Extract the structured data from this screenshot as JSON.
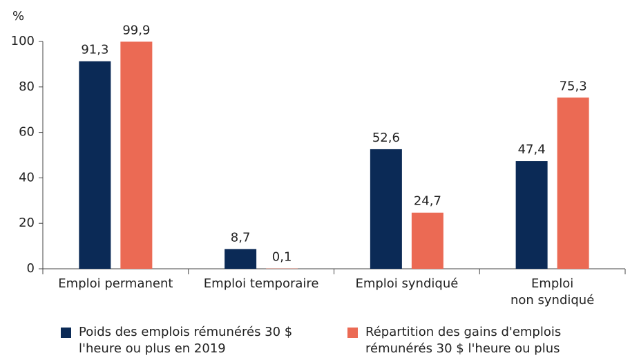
{
  "chart_data": {
    "type": "bar",
    "y_label": "%",
    "categories": [
      "Emploi permanent",
      "Emploi temporaire",
      "Emploi syndiqué",
      "Emploi\nnon syndiqué"
    ],
    "series": [
      {
        "name": "Poids des emplois rémunérés 30 $ l'heure ou plus en 2019",
        "color": "#0b2a56",
        "values": [
          91.3,
          8.7,
          52.6,
          47.4
        ],
        "value_labels": [
          "91,3",
          "8,7",
          "52,6",
          "47,4"
        ]
      },
      {
        "name": "Répartition des gains d'emplois rémunérés 30 $ l'heure ou plus",
        "color": "#eb6a54",
        "values": [
          99.9,
          0.1,
          24.7,
          75.3
        ],
        "value_labels": [
          "99,9",
          "0,1",
          "24,7",
          "75,3"
        ]
      }
    ],
    "ylim": [
      0,
      100
    ],
    "yticks": [
      0,
      20,
      40,
      60,
      80,
      100
    ],
    "legend": "bottom"
  }
}
